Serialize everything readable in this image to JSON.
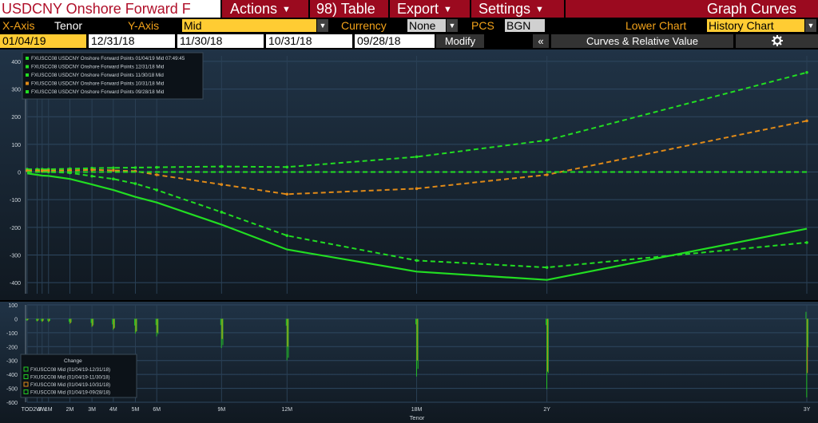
{
  "toolbar": {
    "title": "USDCNY Onshore Forward F",
    "actions": "Actions",
    "table": "98) Table",
    "export": "Export",
    "settings": "Settings",
    "graph_curves": "Graph Curves"
  },
  "controls": {
    "xaxis_label": "X-Axis",
    "xaxis_value": "Tenor",
    "yaxis_label": "Y-Axis",
    "yaxis_value": "Mid",
    "currency_label": "Currency",
    "currency_value": "None",
    "pcs_label": "PCS",
    "pcs_value": "BGN",
    "lower_chart_label": "Lower Chart",
    "lower_chart_value": "History Chart"
  },
  "dates": {
    "d1": "01/04/19",
    "d2": "12/31/18",
    "d3": "11/30/18",
    "d4": "10/31/18",
    "d5": "09/28/18",
    "modify": "Modify",
    "collapse": "«",
    "curves_relative": "Curves & Relative Value",
    "gear_icon": "gear-icon"
  },
  "colors": {
    "plot_bg_top": "#203346",
    "plot_bg_bottom": "#101820",
    "green": "#22dd22",
    "orange": "#e08a18",
    "toolbar_bg": "#9b0a1f"
  },
  "chart_data": [
    {
      "type": "line",
      "xlabel": "",
      "ylabel": "",
      "ylim": [
        -440,
        420
      ],
      "yticks": [
        400,
        300,
        200,
        100,
        0,
        -100,
        -200,
        -300,
        -400
      ],
      "grid": true,
      "legend_placement": "top-left",
      "x": [
        "TOD",
        "2W",
        "3W",
        "1M",
        "2M",
        "3M",
        "4M",
        "5M",
        "6M",
        "9M",
        "12M",
        "18M",
        "2Y",
        "3Y"
      ],
      "x_days": [
        0,
        14,
        21,
        30,
        60,
        91,
        121,
        152,
        182,
        273,
        365,
        547,
        730,
        1095
      ],
      "series": [
        {
          "name": "FXUSCC08 USDCNY Onshore Forward Points 01/04/19 Mid 07:49:45",
          "color": "#22dd22",
          "style": "solid",
          "values": [
            -5,
            -10,
            -13,
            -14,
            -25,
            -45,
            -65,
            -90,
            -110,
            -190,
            -280,
            -360,
            -390,
            -205
          ]
        },
        {
          "name": "FXUSCC08 USDCNY Onshore Forward Points 12/31/18 Mid",
          "color": "#22dd22",
          "style": "dashed",
          "values": [
            5,
            3,
            2,
            0,
            -3,
            -15,
            -25,
            -42,
            -65,
            -145,
            -230,
            -320,
            -345,
            -255
          ]
        },
        {
          "name": "FXUSCC08 USDCNY Onshore Forward Points 11/30/18 Mid",
          "color": "#22dd22",
          "style": "dashed",
          "values": [
            10,
            10,
            10,
            10,
            12,
            14,
            15,
            16,
            17,
            20,
            18,
            55,
            115,
            360
          ]
        },
        {
          "name": "FXUSCC08 USDCNY Onshore Forward Points 10/31/18 Mid",
          "color": "#e08a18",
          "style": "dashed",
          "values": [
            5,
            5,
            5,
            5,
            6,
            8,
            6,
            3,
            -10,
            -45,
            -80,
            -60,
            -10,
            185
          ]
        },
        {
          "name": "FXUSCC08 USDCNY Onshore Forward Points 09/28/18 Mid",
          "color": "#22dd22",
          "style": "dashed",
          "values": [
            0,
            0,
            0,
            0,
            0,
            0,
            0,
            0,
            0,
            0,
            0,
            0,
            0,
            0
          ]
        }
      ]
    },
    {
      "type": "bar",
      "title": "Change",
      "xlabel": "Tenor",
      "ylim": [
        -600,
        100
      ],
      "yticks": [
        100,
        0,
        -100,
        -200,
        -300,
        -400,
        -500,
        -600
      ],
      "legend_placement": "bottom-left",
      "x": [
        "TOD",
        "2W",
        "3W",
        "1M",
        "2M",
        "3M",
        "4M",
        "5M",
        "6M",
        "9M",
        "12M",
        "18M",
        "2Y",
        "3Y"
      ],
      "x_days": [
        0,
        14,
        21,
        30,
        60,
        91,
        121,
        152,
        182,
        273,
        365,
        547,
        730,
        1095
      ],
      "series": [
        {
          "name": "FXUSCC08 Mid (01/04/19-12/31/18)",
          "color": "#22cc22",
          "values": [
            -10,
            -13,
            -15,
            -14,
            -22,
            -30,
            -40,
            -48,
            -45,
            -45,
            -50,
            -40,
            -45,
            50
          ]
        },
        {
          "name": "FXUSCC08 Mid (01/04/19-11/30/18)",
          "color": "#22cc22",
          "values": [
            -15,
            -20,
            -23,
            -24,
            -37,
            -59,
            -80,
            -106,
            -127,
            -210,
            -298,
            -415,
            -505,
            -565
          ]
        },
        {
          "name": "FXUSCC08 Mid (01/04/19-10/31/18)",
          "color": "#e08a18",
          "values": [
            -10,
            -15,
            -18,
            -19,
            -31,
            -53,
            -71,
            -93,
            -100,
            -145,
            -200,
            -300,
            -380,
            -390
          ]
        },
        {
          "name": "FXUSCC08 Mid (01/04/19-09/28/18)",
          "color": "#22cc22",
          "values": [
            -5,
            -10,
            -13,
            -14,
            -25,
            -45,
            -65,
            -90,
            -110,
            -190,
            -280,
            -360,
            -390,
            -205
          ]
        }
      ]
    }
  ]
}
